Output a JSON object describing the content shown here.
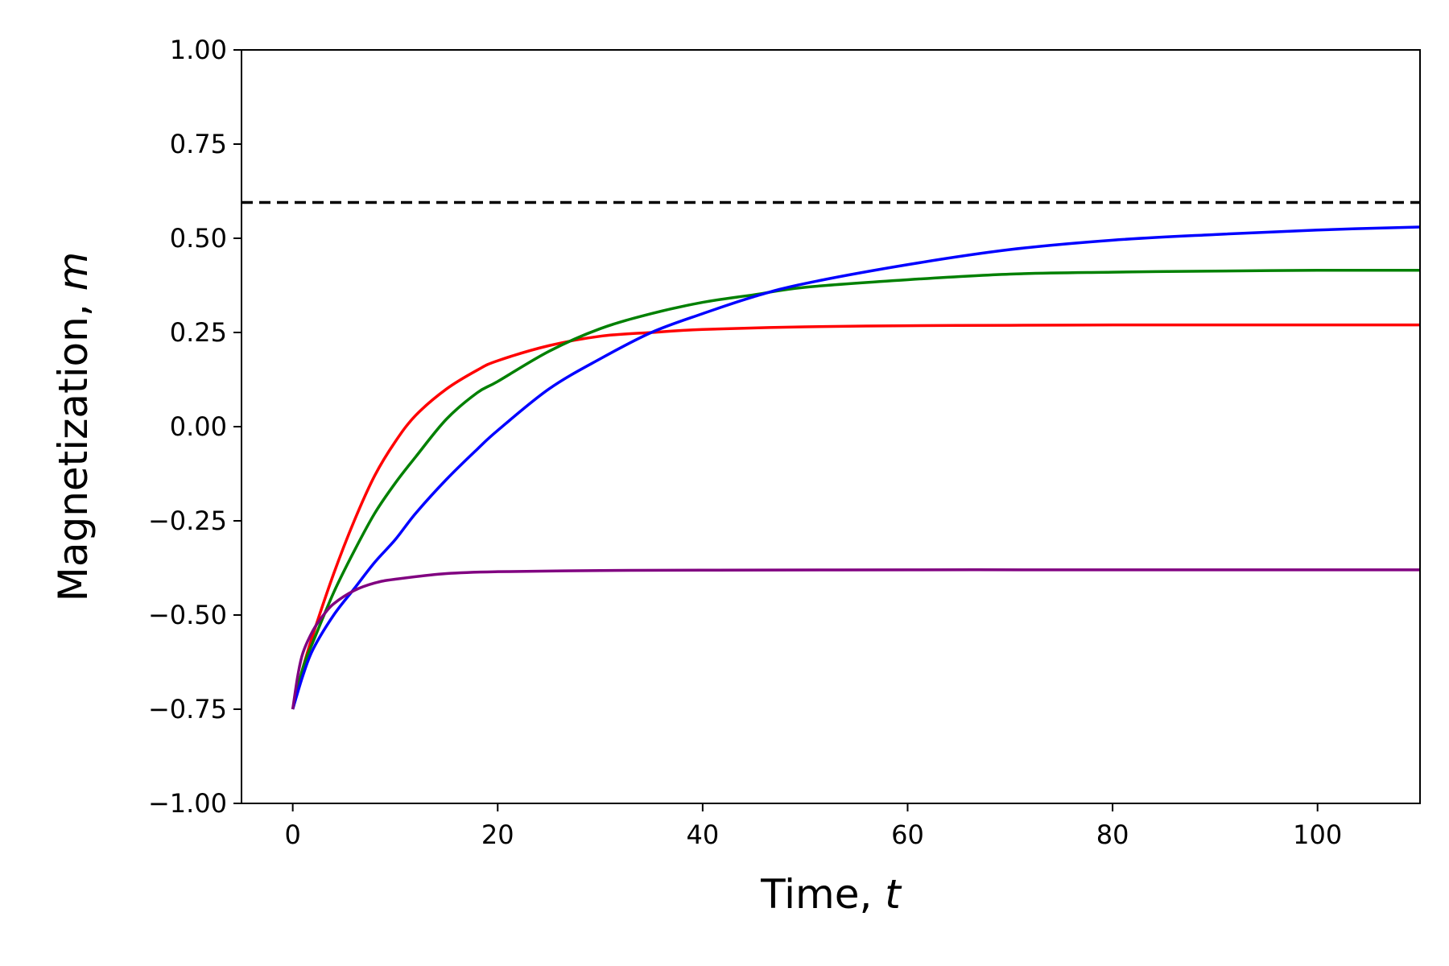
{
  "chart_data": {
    "type": "line",
    "title": "",
    "xlabel": {
      "text": "Time, ",
      "var": "t"
    },
    "ylabel": {
      "text": "Magnetization, ",
      "var": "m"
    },
    "xlim": [
      -5,
      110
    ],
    "ylim": [
      -1.0,
      1.0
    ],
    "xticks": [
      0,
      20,
      40,
      60,
      80,
      100
    ],
    "xtick_labels": [
      "0",
      "20",
      "40",
      "60",
      "80",
      "100"
    ],
    "yticks": [
      1.0,
      0.75,
      0.5,
      0.25,
      0.0,
      -0.25,
      -0.5,
      -0.75,
      -1.0
    ],
    "ytick_labels": [
      "1.00",
      "0.75",
      "0.50",
      "0.25",
      "0.00",
      "−0.25",
      "−0.50",
      "−0.75",
      "−1.00"
    ],
    "grid": false,
    "reference_line": {
      "y": 0.595,
      "style": "dashed",
      "color": "#000000"
    },
    "series": [
      {
        "color": "#ff0000",
        "x": [
          0,
          1,
          2,
          4,
          6,
          8,
          10,
          12,
          15,
          18,
          20,
          25,
          30,
          35,
          40,
          50,
          60,
          70,
          80,
          90,
          100,
          110
        ],
        "y": [
          -0.75,
          -0.64,
          -0.55,
          -0.39,
          -0.25,
          -0.13,
          -0.04,
          0.03,
          0.1,
          0.15,
          0.175,
          0.215,
          0.24,
          0.25,
          0.258,
          0.265,
          0.268,
          0.269,
          0.27,
          0.27,
          0.27,
          0.27
        ]
      },
      {
        "color": "#008000",
        "x": [
          0,
          1,
          2,
          4,
          6,
          8,
          10,
          12,
          15,
          18,
          20,
          25,
          30,
          35,
          40,
          45,
          50,
          60,
          70,
          80,
          90,
          100,
          110
        ],
        "y": [
          -0.75,
          -0.64,
          -0.57,
          -0.44,
          -0.33,
          -0.23,
          -0.15,
          -0.08,
          0.02,
          0.09,
          0.12,
          0.2,
          0.26,
          0.3,
          0.33,
          0.35,
          0.37,
          0.39,
          0.405,
          0.41,
          0.413,
          0.415,
          0.415
        ]
      },
      {
        "color": "#0000ff",
        "x": [
          0,
          1,
          2,
          4,
          6,
          8,
          10,
          12,
          15,
          18,
          20,
          25,
          30,
          35,
          40,
          45,
          50,
          60,
          70,
          80,
          90,
          100,
          110
        ],
        "y": [
          -0.75,
          -0.66,
          -0.59,
          -0.5,
          -0.43,
          -0.36,
          -0.3,
          -0.23,
          -0.14,
          -0.06,
          -0.01,
          0.1,
          0.18,
          0.25,
          0.3,
          0.345,
          0.38,
          0.43,
          0.47,
          0.495,
          0.51,
          0.522,
          0.53
        ]
      },
      {
        "color": "#800080",
        "x": [
          0,
          0.5,
          1,
          2,
          3,
          4,
          6,
          8,
          10,
          15,
          20,
          30,
          40,
          60,
          80,
          100,
          110
        ],
        "y": [
          -0.75,
          -0.66,
          -0.6,
          -0.54,
          -0.5,
          -0.47,
          -0.435,
          -0.415,
          -0.405,
          -0.39,
          -0.385,
          -0.382,
          -0.381,
          -0.38,
          -0.38,
          -0.38,
          -0.38
        ]
      }
    ]
  }
}
